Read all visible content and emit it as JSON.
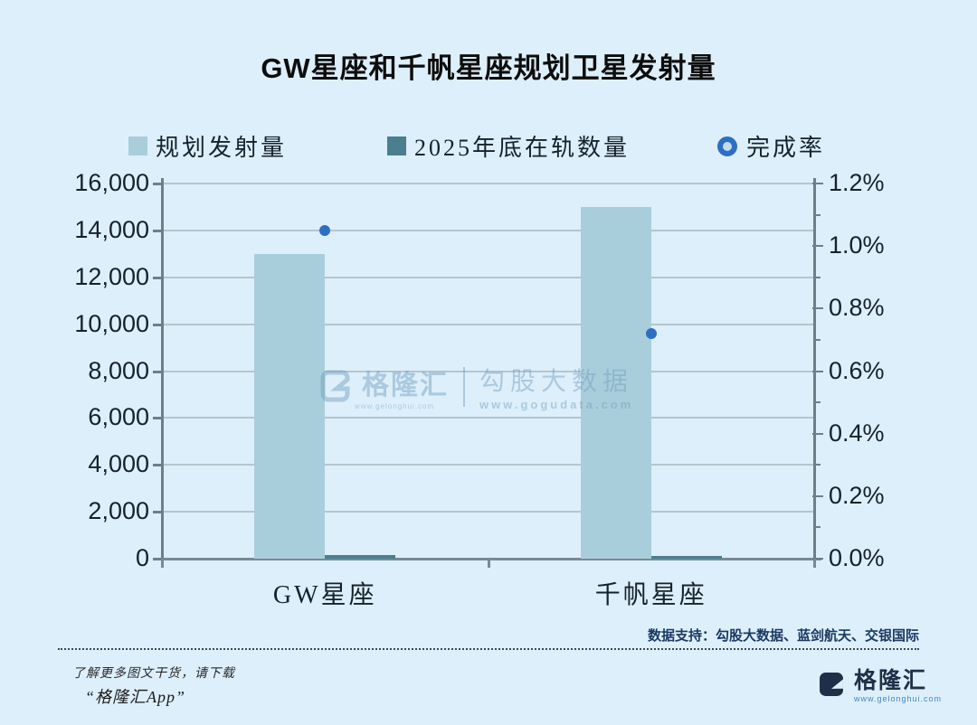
{
  "title": "GW星座和千帆星座规划卫星发射量",
  "legend": {
    "planned": "规划发射量",
    "in_orbit": "2025年底在轨数量",
    "completion": "完成率"
  },
  "chart_data": {
    "type": "bar",
    "categories": [
      "GW星座",
      "千帆星座"
    ],
    "series": [
      {
        "name": "规划发射量",
        "type": "bar",
        "axis": "left",
        "values": [
          13000,
          15000
        ],
        "color": "#a9cedb"
      },
      {
        "name": "2025年底在轨数量",
        "type": "bar",
        "axis": "left",
        "values": [
          140,
          110
        ],
        "color": "#4a7f8f"
      },
      {
        "name": "完成率",
        "type": "scatter",
        "axis": "right",
        "values": [
          1.05,
          0.72
        ],
        "unit": "%",
        "marker_ring": "#2e6fc4",
        "marker_fill": "#c6dbee"
      }
    ],
    "left_axis": {
      "min": 0,
      "max": 16000,
      "step": 2000,
      "tick_labels": [
        "16,000",
        "14,000",
        "12,000",
        "10,000",
        "8,000",
        "6,000",
        "4,000",
        "2,000",
        "0"
      ]
    },
    "right_axis": {
      "min": 0,
      "max": 1.2,
      "step": 0.2,
      "tick_labels": [
        "1.2%",
        "1.0%",
        "0.8%",
        "0.6%",
        "0.4%",
        "0.2%",
        "0.0%"
      ]
    },
    "grid": true,
    "legend_position": "top"
  },
  "watermark": {
    "brand": "格隆汇",
    "brand_url": "www.gelonghui.com",
    "product": "勾股大数据",
    "product_url": "www.gogudata.com"
  },
  "footer": {
    "source": "数据支持：勾股大数据、蓝剑航天、交银国际",
    "promo_line1": "了解更多图文干货，请下载",
    "promo_line2": "“格隆汇App”",
    "brand": "格隆汇",
    "brand_url": "www.gelonghui.com"
  },
  "colors": {
    "background": "#ddeffa",
    "bar_planned": "#a9cedb",
    "bar_in_orbit": "#4a7f8f",
    "marker_ring": "#2e6fc4",
    "grid": "#b6c5cd",
    "axis": "#6f7f88",
    "footer_text": "#1a3a63"
  }
}
